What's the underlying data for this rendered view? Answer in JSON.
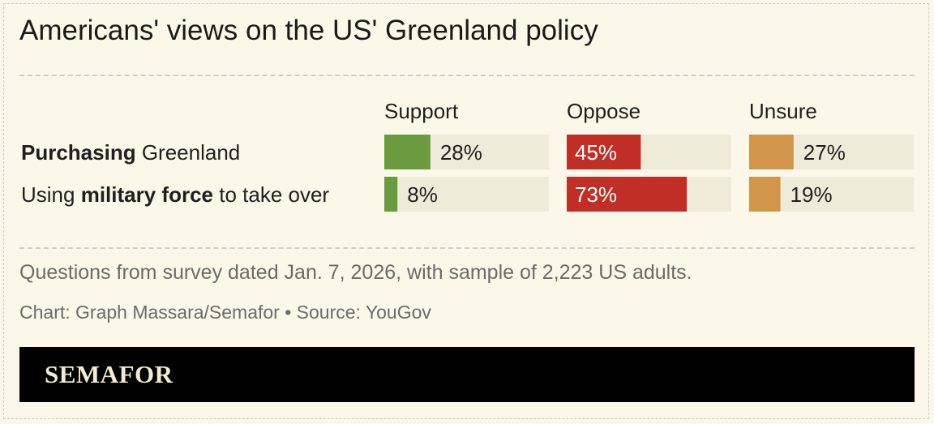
{
  "title": "Americans' views on the US' Greenland policy",
  "chart_data": {
    "type": "bar",
    "orientation": "horizontal",
    "stacked": false,
    "columns": [
      "Support",
      "Oppose",
      "Unsure"
    ],
    "rows": [
      {
        "label_parts": [
          {
            "text": "Purchasing",
            "bold": true
          },
          {
            "text": " Greenland",
            "bold": false
          }
        ],
        "values": [
          28,
          45,
          27
        ]
      },
      {
        "label_parts": [
          {
            "text": "Using ",
            "bold": false
          },
          {
            "text": "military force",
            "bold": true
          },
          {
            "text": " to take over",
            "bold": false
          }
        ],
        "values": [
          8,
          73,
          19
        ]
      }
    ],
    "value_suffix": "%",
    "xlim": [
      0,
      100
    ],
    "colors": {
      "Support": "#6a9c3f",
      "Oppose": "#c12e26",
      "Unsure": "#d2964a",
      "track": "#efebd9"
    }
  },
  "notes": {
    "survey": "Questions from survey dated Jan. 7, 2026, with sample of 2,223 US adults.",
    "credit": "Chart: Graph Massara/Semafor • Source: YouGov"
  },
  "footer": {
    "logo": "SEMAFOR"
  }
}
